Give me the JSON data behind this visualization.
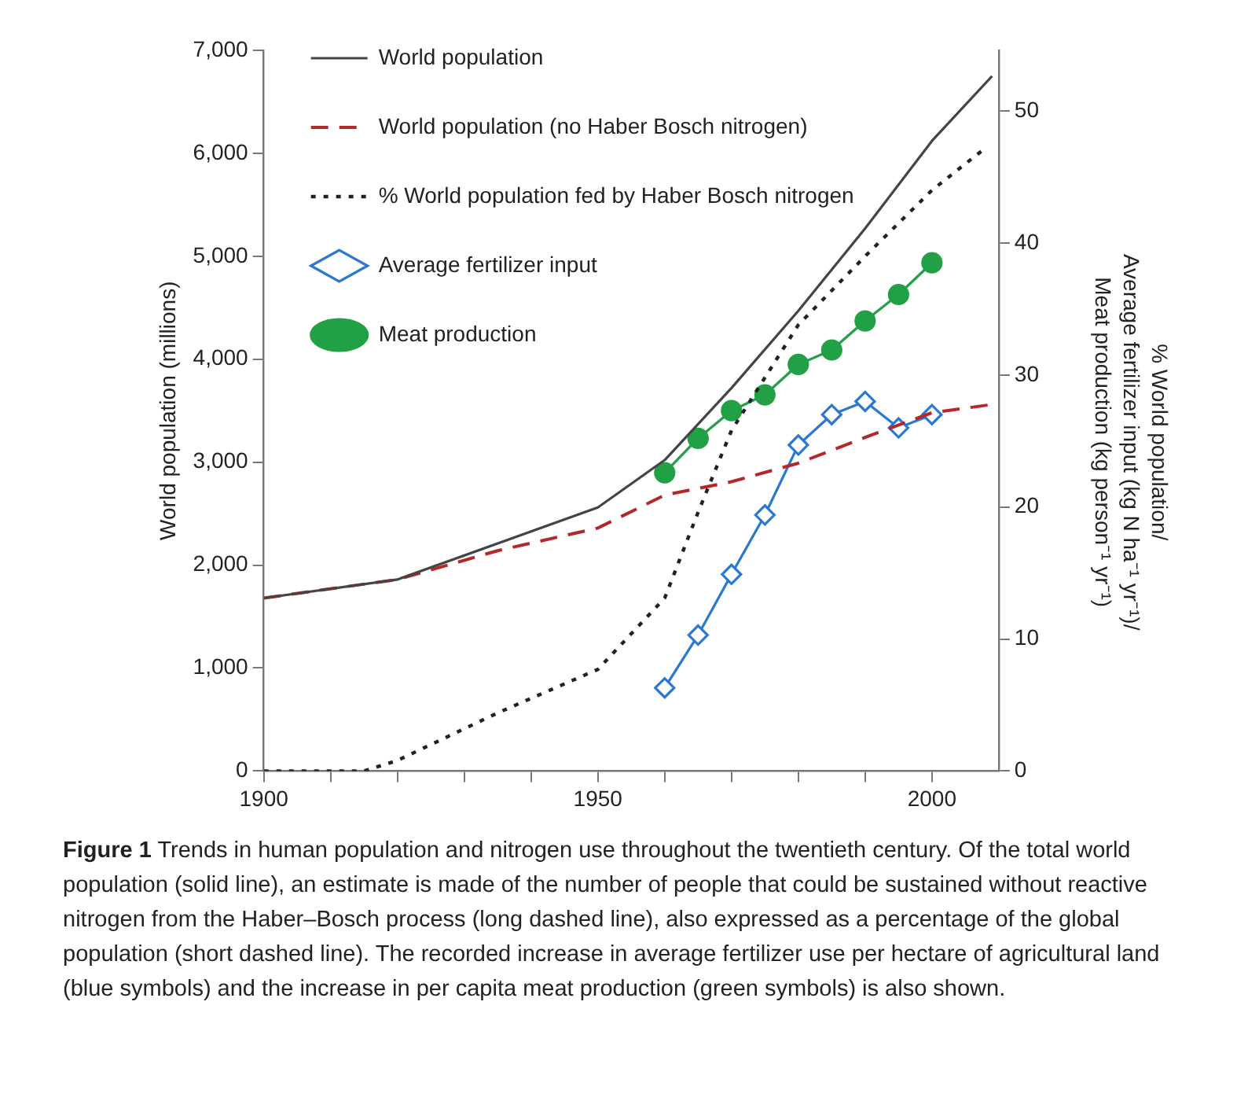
{
  "chart_data": {
    "type": "line",
    "xlabel": null,
    "ylabel": "World population (millions)",
    "y2label": "% World population/ Average fertilizer input (kg N ha⁻¹ yr⁻¹)/ Meat production (kg person⁻¹ yr⁻¹)",
    "xlim": [
      1900,
      2010
    ],
    "xticks": [
      1900,
      {
        "value": 1910,
        "label": null
      },
      {
        "value": 1920,
        "label": null
      },
      {
        "value": 1930,
        "label": null
      },
      {
        "value": 1940,
        "label": null
      },
      1950,
      {
        "value": 1960,
        "label": null
      },
      {
        "value": 1970,
        "label": null
      },
      {
        "value": 1980,
        "label": null
      },
      {
        "value": 1990,
        "label": null
      },
      2000
    ],
    "ylim": [
      0,
      7000
    ],
    "yticks": [
      0,
      {
        "value": 1000,
        "label": "1,000"
      },
      {
        "value": 2000,
        "label": "2,000"
      },
      {
        "value": 3000,
        "label": "3,000"
      },
      {
        "value": 4000,
        "label": "4,000"
      },
      {
        "value": 5000,
        "label": "5,000"
      },
      {
        "value": 6000,
        "label": "6,000"
      },
      {
        "value": 7000,
        "label": "7,000"
      }
    ],
    "y2lim": [
      0,
      54.6
    ],
    "y2ticks": [
      0,
      10,
      20,
      30,
      40,
      50
    ],
    "grid": false,
    "legend": "top left",
    "series": [
      {
        "name": "World population",
        "color": "#444444",
        "line_style": "solid",
        "marker": "none",
        "x": [
          1900,
          1920,
          1950,
          1960,
          1970,
          1980,
          1990,
          2000,
          2009
        ],
        "values": [
          1680,
          1860,
          2560,
          3020,
          3720,
          4470,
          5270,
          6120,
          6750
        ]
      },
      {
        "name": "World population (no Haber Bosch nitrogen)",
        "color": "#b5282a",
        "line_style": "dashed",
        "marker": "none",
        "x": [
          1900,
          1920,
          1935,
          1950,
          1960,
          1970,
          1980,
          1990,
          2000,
          2009
        ],
        "values": [
          1680,
          1860,
          2140,
          2360,
          2680,
          2810,
          2990,
          3240,
          3480,
          3560
        ]
      },
      {
        "name": "% World population fed by Haber Bosch nitrogen",
        "color": "#222222",
        "line_style": "dotted",
        "marker": "none",
        "axis": "y2",
        "x": [
          1900,
          1915,
          1920,
          1935,
          1950,
          1960,
          1965,
          1970,
          1980,
          1990,
          2000,
          2008
        ],
        "values": [
          0,
          0,
          0.8,
          4.4,
          7.7,
          13.1,
          19.6,
          25.8,
          33.8,
          39.0,
          44.0,
          47.2
        ]
      },
      {
        "name": "Average fertilizer input",
        "color": "#2a78d0",
        "line_style": "solid",
        "marker": "diamond",
        "axis": "y2",
        "x": [
          1960,
          1965,
          1970,
          1975,
          1980,
          1985,
          1990,
          1995,
          2000
        ],
        "values": [
          6.3,
          10.3,
          14.9,
          19.4,
          24.7,
          27.0,
          28.0,
          26.0,
          27.0
        ]
      },
      {
        "name": "Meat production",
        "color": "#21a046",
        "line_style": "solid",
        "marker": "circle",
        "axis": "y2",
        "x": [
          1960,
          1965,
          1970,
          1975,
          1980,
          1985,
          1990,
          1995,
          2000
        ],
        "values": [
          22.6,
          25.2,
          27.3,
          28.5,
          30.8,
          31.9,
          34.1,
          36.1,
          38.5
        ]
      }
    ],
    "annotations": [
      "Figure 1",
      "Trends in human population and nitrogen use throughout the twentieth century. Of the total world population (solid line), an estimate is made of the number of people that could be sustained without reactive nitrogen from the Haber–Bosch process (long dashed line), also expressed as a percentage of the global population (short dashed line). The recorded increase in average fertilizer use per hectare of agricultural land (blue symbols) and the increase in per capita meat production (green symbols) is also shown."
    ]
  }
}
